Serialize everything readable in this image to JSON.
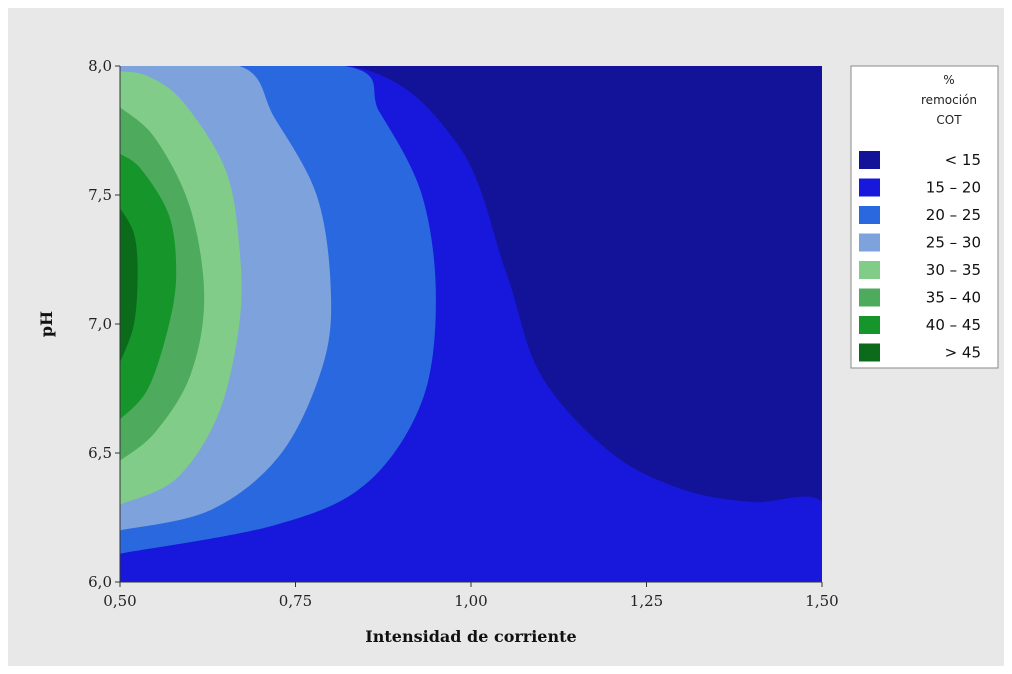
{
  "chart_data": {
    "type": "contour",
    "title": "",
    "xlabel": "Intensidad de corriente",
    "ylabel": "pH",
    "xlim": [
      0.5,
      1.5
    ],
    "ylim": [
      6.0,
      8.0
    ],
    "x_ticks": [
      "0,50",
      "0,75",
      "1,00",
      "1,25",
      "1,50"
    ],
    "y_ticks": [
      "6,0",
      "6,5",
      "7,0",
      "7,5",
      "8,0"
    ],
    "legend": {
      "title_lines": [
        "%",
        "remoción",
        "COT"
      ],
      "placement": "right",
      "entries": [
        {
          "label": "< 15",
          "color": "#13139a"
        },
        {
          "label": "15 – 20",
          "color": "#1818dc"
        },
        {
          "label": "20 – 25",
          "color": "#2a68e0"
        },
        {
          "label": "25 – 30",
          "color": "#7ea2dc"
        },
        {
          "label": "30 – 35",
          "color": "#80cc88"
        },
        {
          "label": "35 – 40",
          "color": "#4eaa5c"
        },
        {
          "label": "40 – 45",
          "color": "#15952a"
        },
        {
          "label": "> 45",
          "color": "#0b6b1a"
        }
      ]
    },
    "regions": [
      {
        "level": "15 – 20",
        "boundary": [
          [
            0.5,
            6.0
          ],
          [
            0.5,
            8.0
          ],
          [
            0.83,
            8.0
          ],
          [
            0.98,
            7.7
          ],
          [
            1.05,
            7.2
          ],
          [
            1.1,
            6.8
          ],
          [
            1.2,
            6.5
          ],
          [
            1.3,
            6.36
          ],
          [
            1.4,
            6.31
          ],
          [
            1.5,
            6.31
          ],
          [
            1.5,
            6.0
          ]
        ]
      },
      {
        "level": "20 – 25",
        "boundary": [
          [
            0.5,
            6.11
          ],
          [
            0.72,
            6.22
          ],
          [
            0.85,
            6.38
          ],
          [
            0.93,
            6.7
          ],
          [
            0.95,
            7.1
          ],
          [
            0.93,
            7.5
          ],
          [
            0.87,
            7.82
          ],
          [
            0.82,
            8.0
          ],
          [
            0.5,
            8.0
          ]
        ]
      },
      {
        "level": "25 – 30",
        "boundary": [
          [
            0.5,
            6.2
          ],
          [
            0.63,
            6.28
          ],
          [
            0.73,
            6.5
          ],
          [
            0.79,
            6.85
          ],
          [
            0.8,
            7.15
          ],
          [
            0.78,
            7.5
          ],
          [
            0.72,
            7.8
          ],
          [
            0.67,
            8.0
          ],
          [
            0.5,
            8.0
          ]
        ]
      },
      {
        "level": "30 – 35",
        "boundary": [
          [
            0.5,
            6.3
          ],
          [
            0.58,
            6.4
          ],
          [
            0.64,
            6.65
          ],
          [
            0.67,
            7.0
          ],
          [
            0.67,
            7.3
          ],
          [
            0.65,
            7.6
          ],
          [
            0.59,
            7.86
          ],
          [
            0.54,
            7.96
          ],
          [
            0.5,
            7.98
          ]
        ]
      },
      {
        "level": "35 – 40",
        "boundary": [
          [
            0.5,
            6.47
          ],
          [
            0.55,
            6.58
          ],
          [
            0.6,
            6.8
          ],
          [
            0.62,
            7.1
          ],
          [
            0.6,
            7.45
          ],
          [
            0.55,
            7.72
          ],
          [
            0.5,
            7.84
          ]
        ]
      },
      {
        "level": "40 – 45",
        "boundary": [
          [
            0.5,
            6.63
          ],
          [
            0.54,
            6.75
          ],
          [
            0.57,
            7.0
          ],
          [
            0.58,
            7.2
          ],
          [
            0.57,
            7.42
          ],
          [
            0.53,
            7.6
          ],
          [
            0.5,
            7.66
          ]
        ]
      },
      {
        "level": "> 45",
        "boundary": [
          [
            0.5,
            6.85
          ],
          [
            0.52,
            7.0
          ],
          [
            0.525,
            7.2
          ],
          [
            0.52,
            7.35
          ],
          [
            0.5,
            7.45
          ]
        ]
      }
    ],
    "background_level": "< 15"
  }
}
